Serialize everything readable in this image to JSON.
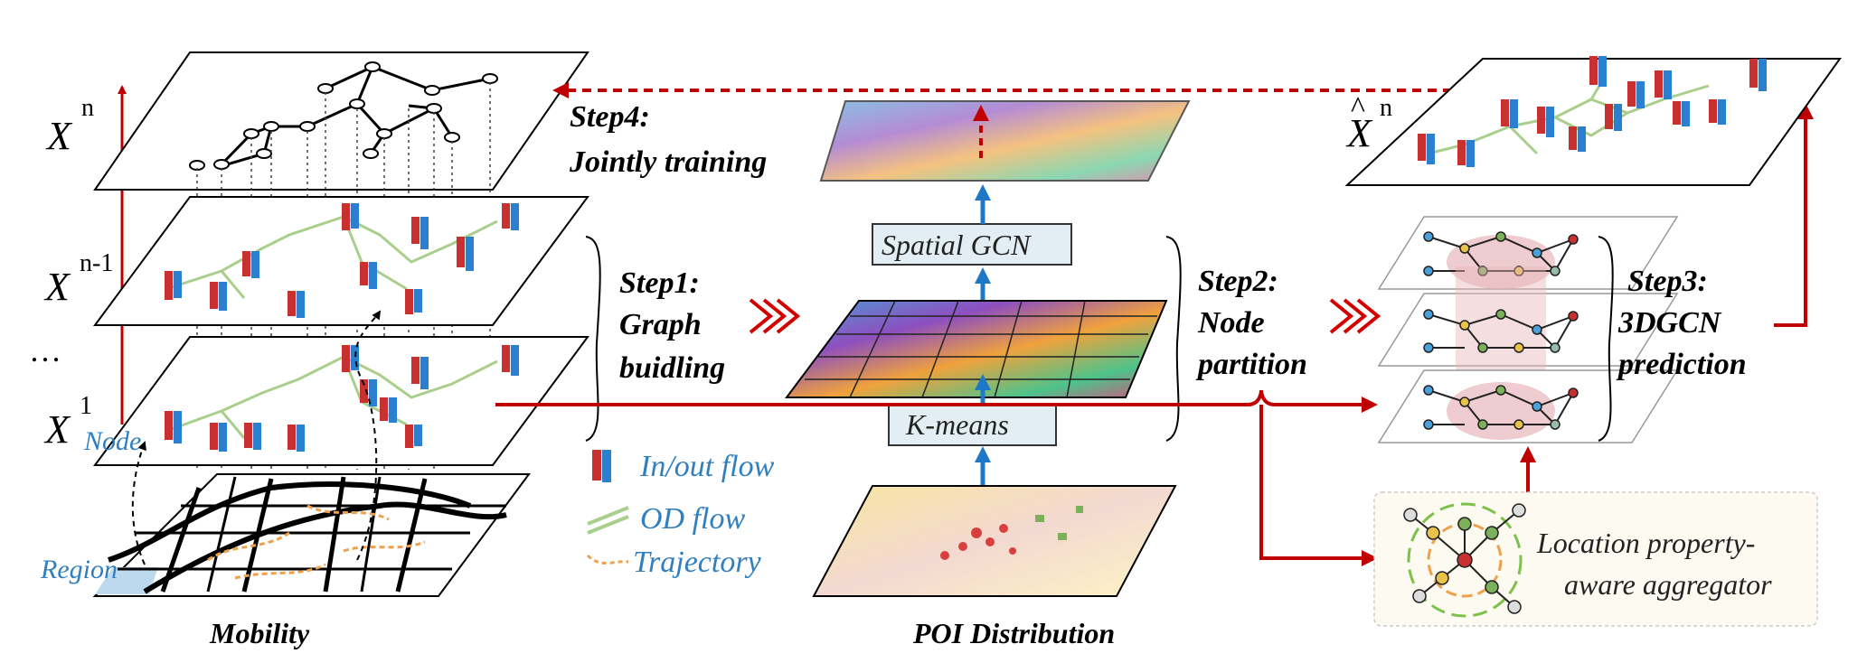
{
  "layers": {
    "xn": {
      "base": "X",
      "sup": "n"
    },
    "xn1": {
      "base": "X",
      "sup": "n-1"
    },
    "ellipsis": "…",
    "x1": {
      "base": "X",
      "sup": "1"
    },
    "xhat": {
      "base": "X",
      "hat": "^",
      "sup": "n"
    }
  },
  "annotations": {
    "node": "Node",
    "region": "Region"
  },
  "captions": {
    "mobility": "Mobility",
    "poi": "POI Distribution"
  },
  "legend": {
    "inout": "In/out flow",
    "od": "OD flow",
    "trajectory": "Trajectory"
  },
  "steps": {
    "step1": {
      "title": "Step1:",
      "line1": "Graph",
      "line2": "buidling"
    },
    "step2": {
      "title": "Step2:",
      "line1": "Node",
      "line2": "partition"
    },
    "step3": {
      "title": "Step3:",
      "line1": "3DGCN",
      "line2": "prediction"
    },
    "step4": {
      "title": "Step4:",
      "line1": "Jointly  training"
    }
  },
  "modules": {
    "spatial_gcn": "Spatial GCN",
    "kmeans": "K-means",
    "aggregator_line1": "Location property-",
    "aggregator_line2": "aware aggregator"
  },
  "colors": {
    "red": "#c00000",
    "blue": "#1f77c8",
    "od_green": "#a9cf8c",
    "trajectory_orange": "#f0a04b",
    "label_blue": "#2f7fc1"
  }
}
